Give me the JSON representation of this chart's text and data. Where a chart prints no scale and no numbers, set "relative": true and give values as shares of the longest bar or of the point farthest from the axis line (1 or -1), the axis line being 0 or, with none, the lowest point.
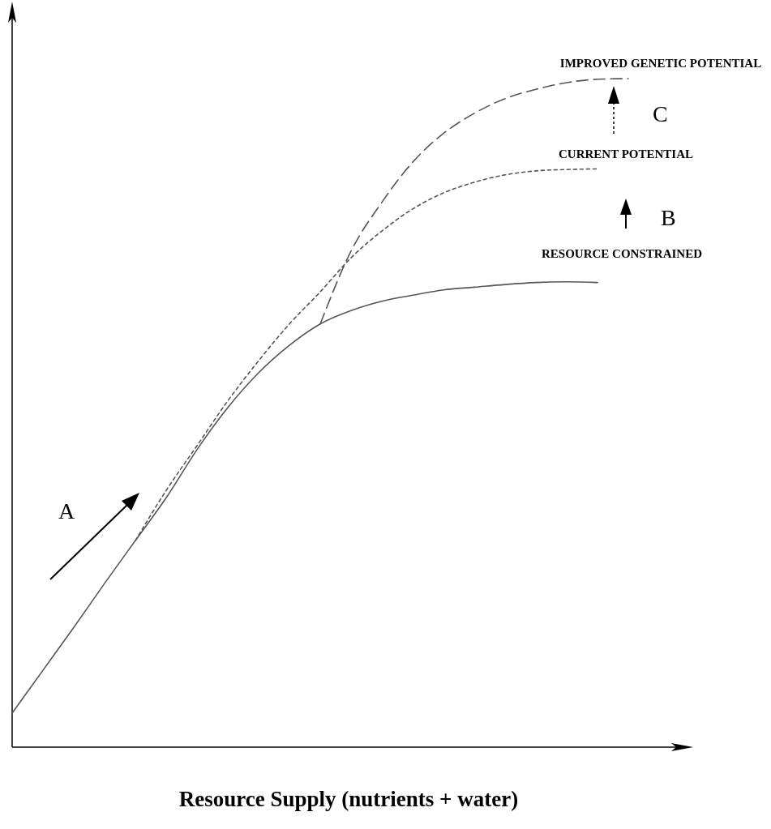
{
  "chart_data": {
    "type": "line",
    "relative": true,
    "xlabel": "Resource Supply (nutrients + water)",
    "categories": [
      null,
      null,
      null,
      null,
      null,
      null,
      null,
      null,
      null,
      null,
      null,
      null,
      null,
      null,
      null,
      null,
      null,
      null,
      null,
      null,
      null
    ],
    "series": [
      {
        "name": "RESOURCE CONSTRAINED",
        "color": "#555555",
        "line_style": "solid",
        "values": [
          0.051,
          0.115,
          0.179,
          0.245,
          0.309,
          0.373,
          0.445,
          0.508,
          0.56,
          0.601,
          0.633,
          0.653,
          0.667,
          0.676,
          0.684,
          0.688,
          0.692,
          0.695,
          0.696,
          0.695,
          null
        ]
      },
      {
        "name": "CURRENT POTENTIAL",
        "color": "#555555",
        "line_style": "dotted",
        "values": [
          null,
          null,
          null,
          null,
          0.309,
          0.384,
          0.451,
          0.518,
          0.578,
          0.633,
          0.681,
          0.732,
          0.772,
          0.805,
          0.829,
          0.845,
          0.856,
          0.862,
          0.864,
          0.865,
          null
        ]
      },
      {
        "name": "IMPROVED GENETIC POTENTIAL",
        "color": "#555555",
        "line_style": "dashed",
        "values": [
          null,
          null,
          null,
          null,
          null,
          null,
          null,
          null,
          null,
          null,
          0.633,
          0.742,
          0.815,
          0.875,
          0.918,
          0.948,
          0.97,
          0.984,
          0.994,
          0.999,
          1
        ]
      }
    ],
    "annotations": [
      "A",
      "B",
      "C"
    ]
  }
}
